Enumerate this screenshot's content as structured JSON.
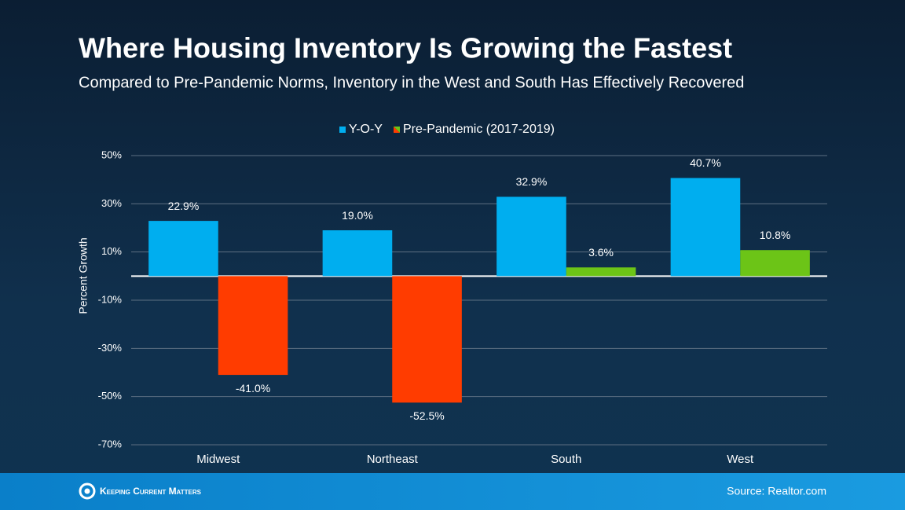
{
  "chart_data": {
    "type": "bar",
    "title": "Where Housing Inventory Is Growing the Fastest",
    "subtitle": "Compared to Pre-Pandemic Norms, Inventory in the West and South Has Effectively Recovered",
    "y_label": "Percent Growth",
    "categories": [
      "Midwest",
      "Northeast",
      "South",
      "West"
    ],
    "series": [
      {
        "name": "Y-O-Y",
        "color": "#00aeef",
        "values": [
          22.9,
          19.0,
          32.9,
          40.7
        ],
        "value_labels": [
          "22.9%",
          "19.0%",
          "32.9%",
          "40.7%"
        ]
      },
      {
        "name": "Pre-Pandemic (2017-2019)",
        "color": "#6cc417",
        "negative_color": "#ff3c00",
        "values": [
          -41.0,
          -52.5,
          3.6,
          10.8
        ],
        "value_labels": [
          "-41.0%",
          "-52.5%",
          "3.6%",
          "10.8%"
        ]
      }
    ],
    "ylim": [
      -70,
      50
    ],
    "yticks": [
      {
        "value": -70,
        "label": "-70%"
      },
      {
        "value": -50,
        "label": "-50%"
      },
      {
        "value": -30,
        "label": "-30%"
      },
      {
        "value": -10,
        "label": "-10%"
      },
      {
        "value": 10,
        "label": "10%"
      },
      {
        "value": 30,
        "label": "30%"
      },
      {
        "value": 50,
        "label": "50%"
      }
    ],
    "grid": true,
    "legend": "top"
  },
  "footer": {
    "brand": "Keeping Current Matters",
    "source": "Source: Realtor.com"
  }
}
